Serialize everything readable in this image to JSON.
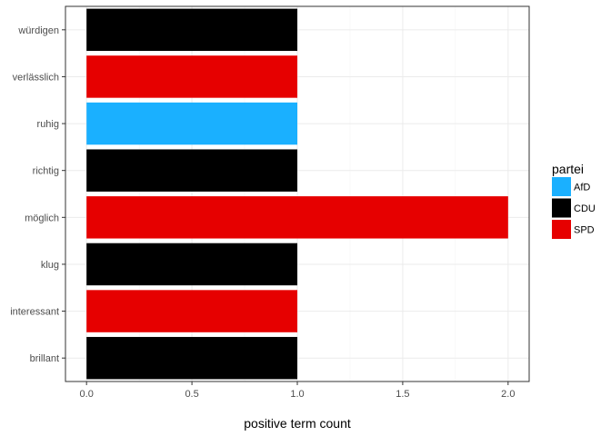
{
  "chart_data": {
    "type": "bar",
    "orientation": "horizontal",
    "categories": [
      "würdigen",
      "verlässlich",
      "ruhig",
      "richtig",
      "möglich",
      "klug",
      "interessant",
      "brillant"
    ],
    "values": [
      1,
      1,
      1,
      1,
      2,
      1,
      1,
      1
    ],
    "fill_by": [
      "CDU",
      "SPD",
      "AfD",
      "CDU",
      "SPD",
      "CDU",
      "SPD",
      "CDU"
    ],
    "xlabel": "positive term count",
    "ylabel": "",
    "xlim": [
      -0.1,
      2.1
    ],
    "xticks": [
      "0.0",
      "0.5",
      "1.0",
      "1.5",
      "2.0"
    ],
    "xtick_values": [
      0,
      0.5,
      1,
      1.5,
      2
    ],
    "grid": true,
    "legend": {
      "title": "partei",
      "placement": "right",
      "entries": [
        {
          "label": "AfD",
          "color": "#1ab0ff"
        },
        {
          "label": "CDU",
          "color": "#000000"
        },
        {
          "label": "SPD",
          "color": "#e60000"
        }
      ]
    }
  }
}
